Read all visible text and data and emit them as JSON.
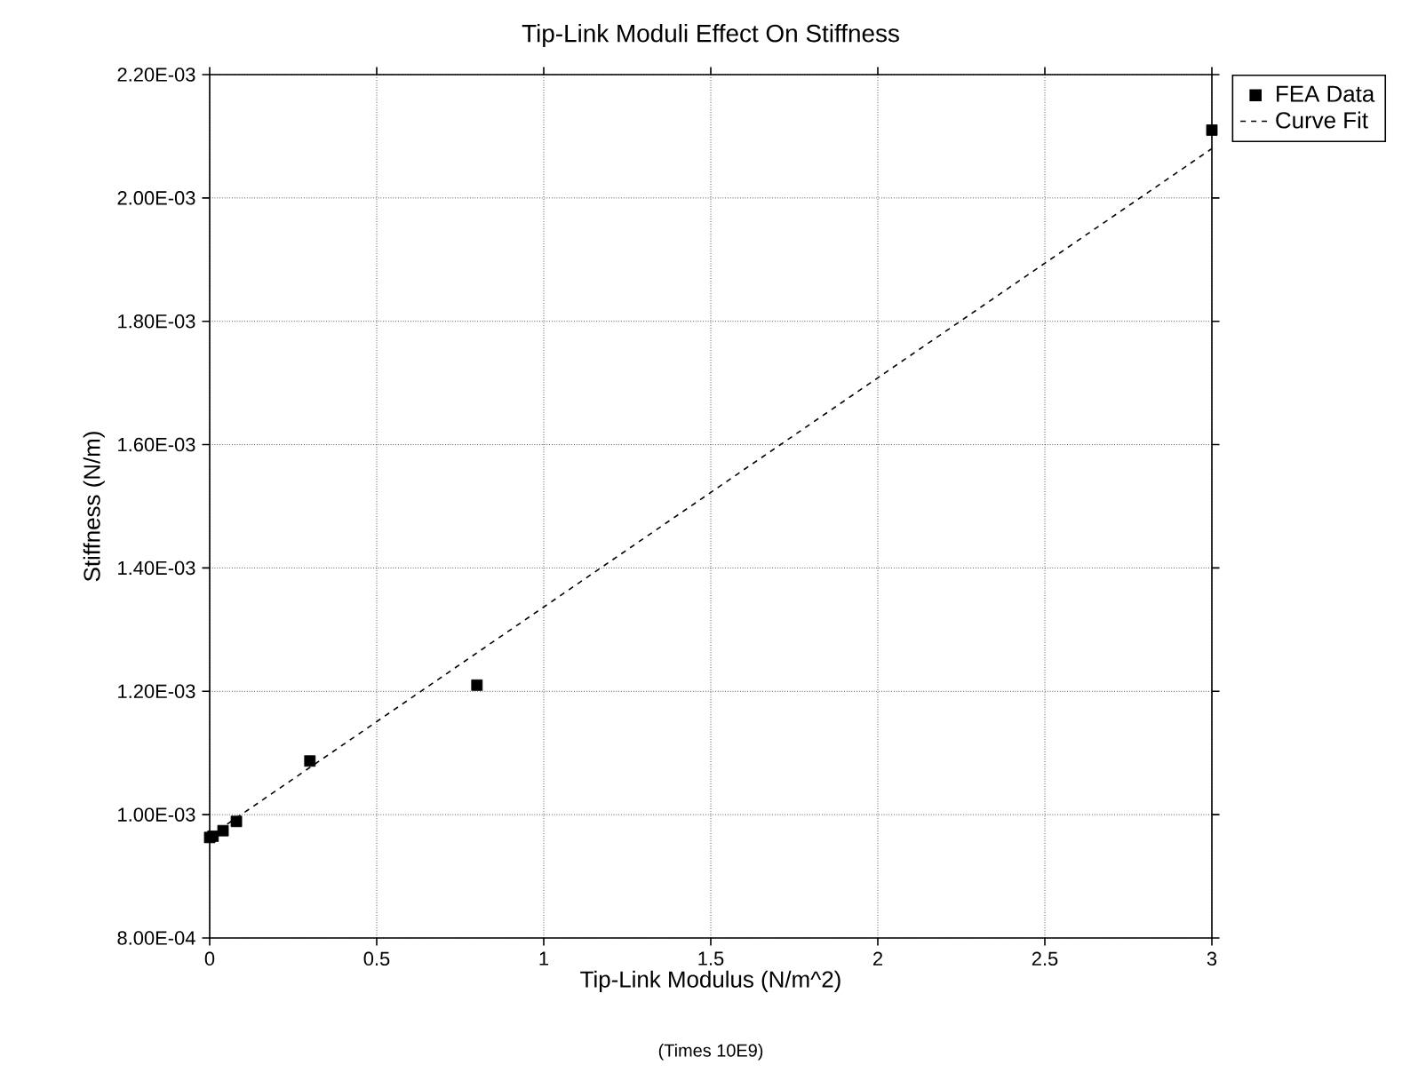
{
  "chart_data": {
    "type": "scatter",
    "title": "Tip-Link Moduli Effect On Stiffness",
    "xlabel": "Tip-Link Modulus (N/m^2)",
    "ylabel": "Stiffness (N/m)",
    "annotations": [
      "(Times 10E9)"
    ],
    "series": [
      {
        "name": "FEA Data",
        "color": "#000000",
        "marker": "square",
        "x": [
          0.0,
          0.01,
          0.04,
          0.08,
          0.3,
          0.8,
          3.0
        ],
        "values": [
          0.000963,
          0.000965,
          0.000974,
          0.000989,
          0.001087,
          0.00121,
          0.00211
        ]
      },
      {
        "name": "Curve Fit",
        "type": "line",
        "color": "#000000",
        "line_style": "dashed",
        "marker": "none",
        "x": [
          0.0,
          3.0
        ],
        "values": [
          0.000965,
          0.00208
        ]
      }
    ],
    "xlim": [
      0,
      3
    ],
    "xticks": [
      0,
      0.5,
      1,
      1.5,
      2,
      2.5,
      3
    ],
    "ylim": [
      0.0008,
      0.0022
    ],
    "yticks": [
      {
        "value": 0.0008,
        "label": "8.00E-04"
      },
      {
        "value": 0.001,
        "label": "1.00E-03"
      },
      {
        "value": 0.0012,
        "label": "1.20E-03"
      },
      {
        "value": 0.0014,
        "label": "1.40E-03"
      },
      {
        "value": 0.0016,
        "label": "1.60E-03"
      },
      {
        "value": 0.0018,
        "label": "1.80E-03"
      },
      {
        "value": 0.002,
        "label": "2.00E-03"
      },
      {
        "value": 0.0022,
        "label": "2.20E-03"
      }
    ],
    "grid": true,
    "legend": "top right"
  }
}
